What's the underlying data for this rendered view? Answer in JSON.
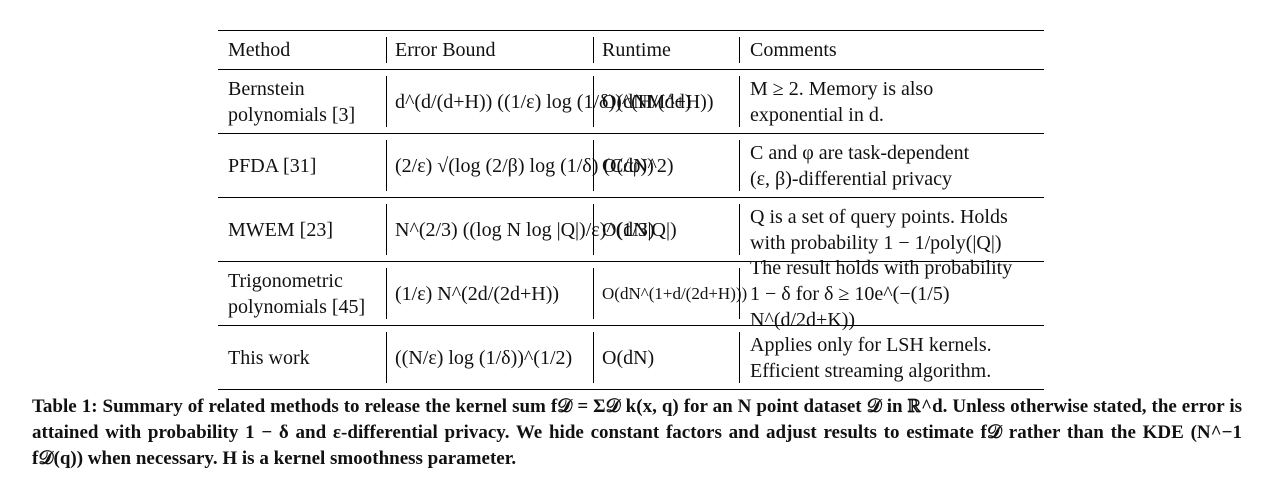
{
  "table": {
    "headers": [
      "Method",
      "Error Bound",
      "Runtime",
      "Comments"
    ],
    "rows": [
      {
        "method": [
          "Bernstein",
          "polynomials [3]"
        ],
        "error_bound": "d^(d/(d+H)) ((1/ε) log (1/δ))^(H/(d+H))",
        "runtime": "O(dNM^d)",
        "comments": [
          "M ≥ 2. Memory is also",
          "exponential in d."
        ]
      },
      {
        "method": [
          "PFDA [31]"
        ],
        "error_bound": "(2/ε) √(log (2/β) log (1/δ) (C/φ))",
        "runtime": "O(dN^2)",
        "comments": [
          "C and φ are task-dependent",
          "(ε, β)-differential privacy"
        ]
      },
      {
        "method": [
          "MWEM [23]"
        ],
        "error_bound": "N^(2/3) ((log N log |Q|)/ε)^(1/3)",
        "runtime": "O(dN|Q|)",
        "comments": [
          "Q is a set of query points. Holds",
          "with probability 1 − 1/poly(|Q|)"
        ]
      },
      {
        "method": [
          "Trigonometric",
          "polynomials [45]"
        ],
        "error_bound": "(1/ε) N^(2d/(2d+H))",
        "runtime": "O(dN^(1+d/(2d+H)))",
        "comments": [
          "The result holds with probability",
          "1 − δ for δ ≥ 10e^(−(1/5) N^(d/2d+K))"
        ]
      },
      {
        "method": [
          "This work"
        ],
        "error_bound": "((N/ε) log (1/δ))^(1/2)",
        "runtime": "O(dN)",
        "comments": [
          "Applies only for LSH kernels.",
          "Efficient streaming algorithm."
        ]
      }
    ]
  },
  "caption": "Table 1: Summary of related methods to release the kernel sum f𝒟 = Σ𝒟 k(x, q) for an N point dataset 𝒟 in ℝ^d. Unless otherwise stated, the error is attained with probability 1 − δ and ε-differential privacy. We hide constant factors and adjust results to estimate f𝒟 rather than the KDE (N^−1 f𝒟(q)) when necessary. H is a kernel smoothness parameter."
}
